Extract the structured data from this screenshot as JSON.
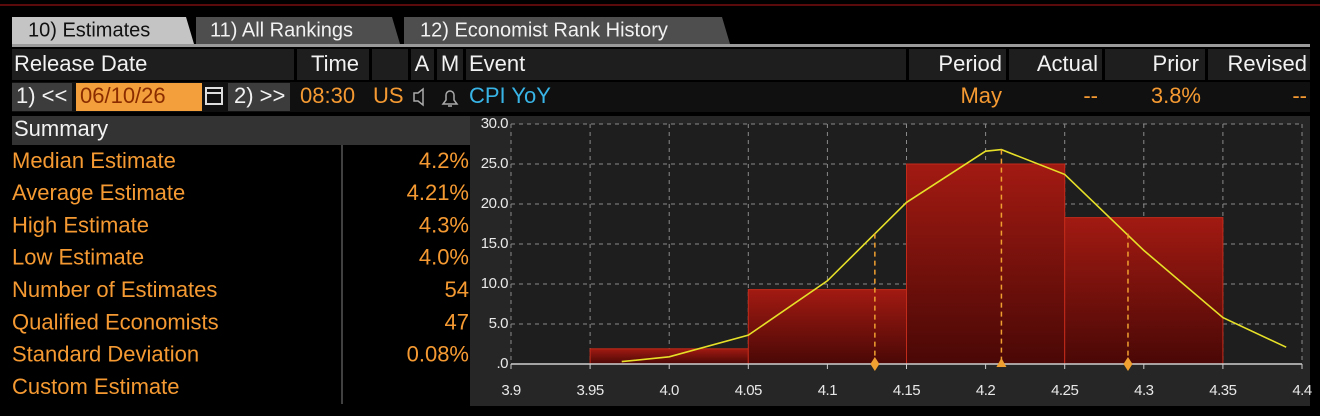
{
  "tabs": [
    "10) Estimates",
    "11) All Rankings",
    "12) Economist Rank History"
  ],
  "header": {
    "columns": [
      "Release Date",
      "Time",
      "A",
      "M",
      "Event",
      "Period",
      "Actual",
      "Prior",
      "Revised"
    ]
  },
  "release": {
    "prev": "1) <<",
    "date": "06/10/26",
    "next": "2) >>",
    "time": "08:30",
    "country": "US",
    "event": "CPI YoY",
    "period": "May",
    "actual": "--",
    "prior": "3.8%",
    "revised": "--"
  },
  "summary": {
    "title": "Summary",
    "rows": [
      [
        "Median Estimate",
        "4.2%"
      ],
      [
        "Average Estimate",
        "4.21%"
      ],
      [
        "High Estimate",
        "4.3%"
      ],
      [
        "Low Estimate",
        "4.0%"
      ],
      [
        "Number of Estimates",
        "54"
      ],
      [
        "Qualified Economists",
        "47"
      ],
      [
        "Standard Deviation",
        "0.08%"
      ],
      [
        "Custom Estimate"
      ]
    ]
  },
  "chart_data": {
    "type": "histogram",
    "bins": [
      3.95,
      4.05,
      4.15,
      4.25,
      4.35
    ],
    "values": [
      1.9,
      9.3,
      25.0,
      18.3
    ],
    "color": "#a21a12",
    "curve": {
      "x": [
        3.97,
        4.0,
        4.05,
        4.1,
        4.15,
        4.2,
        4.21,
        4.25,
        4.3,
        4.35,
        4.39
      ],
      "values": [
        0.3,
        0.9,
        3.6,
        10.4,
        20.2,
        26.6,
        26.8,
        23.7,
        14.2,
        5.8,
        2.1
      ],
      "color": "#e6e028"
    },
    "markers": {
      "x": [
        4.13,
        4.21,
        4.29
      ],
      "values": [
        16.3,
        26.8,
        16.3
      ],
      "symbols": [
        "diamond",
        "triangle",
        "diamond"
      ],
      "color": "#f0a030"
    },
    "xlim": [
      3.9,
      4.4
    ],
    "ylim": [
      0,
      30
    ],
    "xticks": [
      3.9,
      3.95,
      {
        "value": 4,
        "label": "4.0"
      },
      4.05,
      4.1,
      4.15,
      4.2,
      4.25,
      4.3,
      4.35,
      4.4
    ],
    "yticks": [
      {
        "value": 0,
        "label": ".0"
      },
      {
        "value": 5,
        "label": "5.0"
      },
      {
        "value": 10,
        "label": "10.0"
      },
      {
        "value": 15,
        "label": "15.0"
      },
      {
        "value": 20,
        "label": "20.0"
      },
      {
        "value": 25,
        "label": "25.0"
      },
      {
        "value": 30,
        "label": "30.0"
      }
    ],
    "grid": true
  }
}
